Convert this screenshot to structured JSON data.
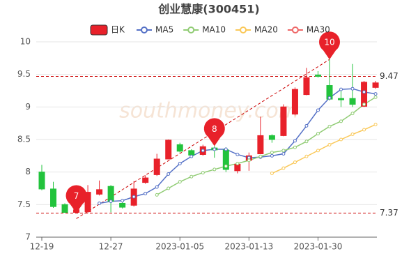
{
  "chart_data": {
    "type": "candlestick",
    "title": "创业慧康(300451)",
    "watermark": "southmoney.com",
    "categories": [
      "12-19",
      null,
      null,
      null,
      null,
      null,
      "12-27",
      null,
      null,
      null,
      null,
      null,
      "2023-01-05",
      null,
      null,
      null,
      null,
      null,
      "2023-01-13",
      null,
      null,
      null,
      null,
      null,
      "2023-01-30",
      null,
      null,
      null,
      null,
      null
    ],
    "ylim": [
      7,
      10
    ],
    "yticks": [
      7,
      7.5,
      8,
      8.5,
      9,
      9.5,
      10
    ],
    "grid": true,
    "candles": {
      "name": "日K",
      "up_color": "#e8212a",
      "down_color": "#22c33c",
      "open": [
        8.0,
        7.74,
        7.5,
        7.38,
        7.39,
        7.66,
        7.78,
        7.52,
        7.49,
        7.84,
        7.96,
        8.2,
        8.42,
        8.33,
        8.27,
        8.37,
        8.34,
        8.02,
        8.18,
        8.28,
        8.56,
        8.56,
        8.89,
        9.19,
        9.49,
        9.33,
        9.13,
        9.13,
        9.01,
        9.3
      ],
      "close": [
        7.74,
        7.47,
        7.38,
        7.42,
        7.69,
        7.73,
        7.55,
        7.46,
        7.74,
        7.91,
        8.2,
        8.49,
        8.32,
        8.26,
        8.39,
        8.34,
        8.04,
        8.12,
        8.25,
        8.56,
        8.5,
        9.0,
        9.27,
        9.45,
        9.47,
        9.12,
        9.11,
        9.04,
        9.38,
        9.37
      ],
      "high": [
        8.11,
        7.85,
        7.52,
        7.45,
        7.8,
        7.87,
        7.8,
        7.54,
        7.86,
        7.95,
        8.28,
        8.5,
        8.45,
        8.35,
        8.42,
        8.4,
        8.38,
        8.15,
        8.3,
        8.85,
        8.58,
        9.04,
        9.3,
        9.6,
        9.55,
        9.73,
        9.28,
        9.66,
        9.4,
        9.4
      ],
      "low": [
        7.72,
        7.45,
        7.38,
        7.37,
        7.37,
        7.64,
        7.38,
        7.44,
        7.47,
        7.82,
        7.94,
        8.2,
        8.3,
        8.22,
        8.25,
        8.22,
        8.0,
        7.98,
        8.02,
        8.28,
        8.45,
        8.55,
        8.87,
        9.18,
        9.45,
        9.1,
        9.0,
        9.0,
        9.0,
        9.28
      ]
    },
    "series": [
      {
        "name": "MA5",
        "color": "#5470c6",
        "values": [
          null,
          null,
          null,
          null,
          null,
          7.52,
          7.55,
          7.56,
          7.62,
          7.67,
          7.77,
          7.97,
          8.13,
          8.24,
          8.33,
          8.35,
          8.35,
          8.27,
          8.22,
          8.23,
          8.25,
          8.28,
          8.48,
          8.71,
          8.95,
          9.14,
          9.27,
          9.28,
          9.23,
          9.2
        ]
      },
      {
        "name": "MA10",
        "color": "#91cc75",
        "values": [
          null,
          null,
          null,
          null,
          null,
          null,
          null,
          null,
          null,
          null,
          7.65,
          7.75,
          7.85,
          7.93,
          7.99,
          8.04,
          8.09,
          8.13,
          8.18,
          8.24,
          8.3,
          8.33,
          8.38,
          8.47,
          8.59,
          8.7,
          8.78,
          8.9,
          9.04,
          9.15
        ]
      },
      {
        "name": "MA20",
        "color": "#fac858",
        "values": [
          null,
          null,
          null,
          null,
          null,
          null,
          null,
          null,
          null,
          null,
          null,
          null,
          null,
          null,
          null,
          null,
          null,
          null,
          null,
          null,
          7.98,
          8.06,
          8.15,
          8.24,
          8.33,
          8.42,
          8.5,
          8.58,
          8.65,
          8.73
        ]
      },
      {
        "name": "MA30",
        "color": "#ee6666",
        "values": [
          null,
          null,
          null,
          null,
          null,
          null,
          null,
          null,
          null,
          null,
          null,
          null,
          null,
          null,
          null,
          null,
          null,
          null,
          null,
          null,
          null,
          null,
          null,
          null,
          null,
          null,
          null,
          null,
          null,
          null
        ]
      }
    ],
    "hlines": [
      {
        "value": 9.47
      },
      {
        "value": 7.37
      }
    ],
    "annotations": [
      {
        "text": "7",
        "index": 3,
        "value": 7.37
      },
      {
        "text": "8",
        "index": 15,
        "value": 8.4
      },
      {
        "text": "10",
        "index": 25,
        "value": 9.73
      }
    ]
  }
}
